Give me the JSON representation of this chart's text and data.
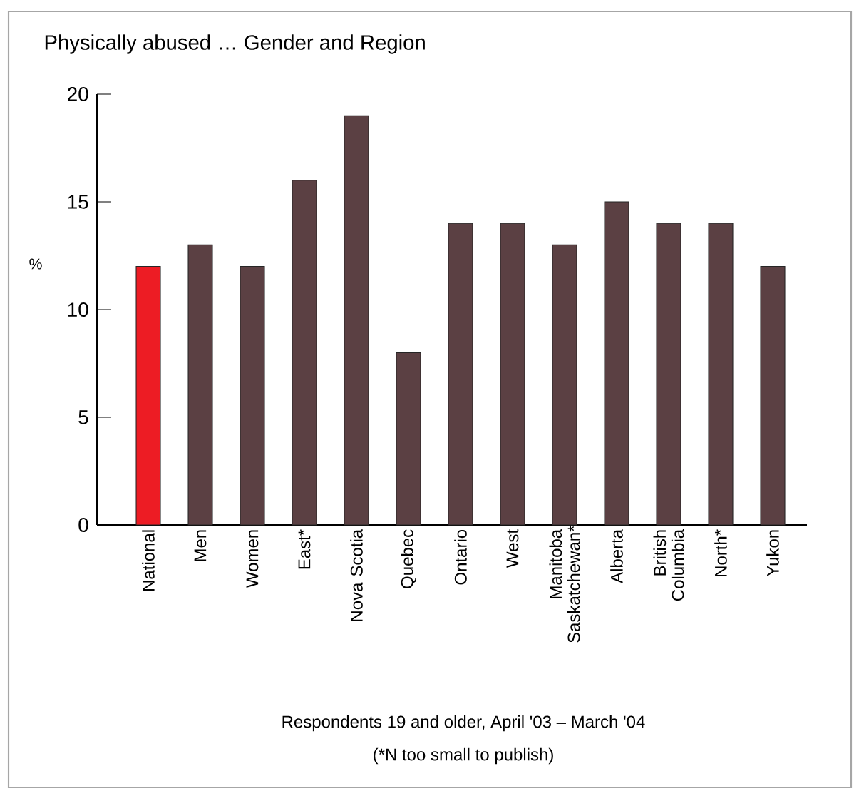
{
  "chart_data": {
    "type": "bar",
    "title": "Physically abused … Gender and Region",
    "ylabel": "%",
    "categories": [
      "National",
      "Men",
      "Women",
      "East*",
      "Nova Scotia",
      "Quebec",
      "Ontario",
      "West",
      "Manitoba Saskatchewan*",
      "Alberta",
      "British Columbia",
      "North*",
      "Yukon"
    ],
    "values": [
      12,
      13,
      12,
      16,
      19,
      8,
      14,
      14,
      13,
      15,
      14,
      14,
      12
    ],
    "colors": [
      "#ed1c24",
      "#5b4043",
      "#5b4043",
      "#5b4043",
      "#5b4043",
      "#5b4043",
      "#5b4043",
      "#5b4043",
      "#5b4043",
      "#5b4043",
      "#5b4043",
      "#5b4043",
      "#5b4043"
    ],
    "ylim": [
      0,
      20
    ],
    "yticks": [
      0,
      5,
      10,
      15,
      20
    ],
    "grid": false,
    "annotations": [
      "Respondents 19 and older, April '03 – March '04",
      "(*N too small to publish)"
    ]
  }
}
